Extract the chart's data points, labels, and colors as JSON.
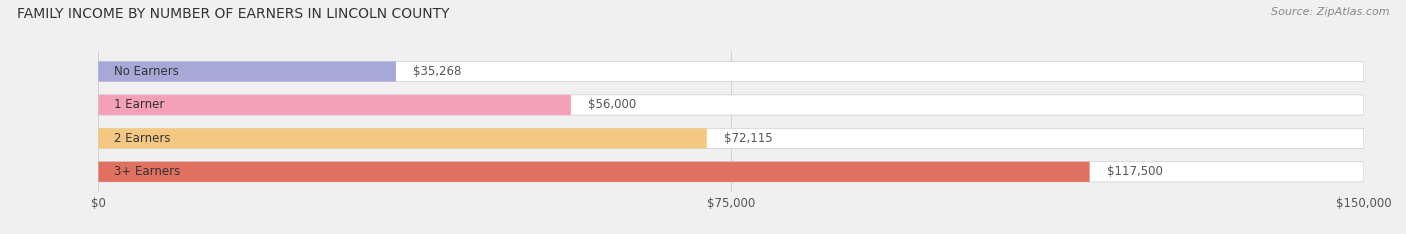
{
  "title": "FAMILY INCOME BY NUMBER OF EARNERS IN LINCOLN COUNTY",
  "source": "Source: ZipAtlas.com",
  "categories": [
    "No Earners",
    "1 Earner",
    "2 Earners",
    "3+ Earners"
  ],
  "values": [
    35268,
    56000,
    72115,
    117500
  ],
  "labels": [
    "$35,268",
    "$56,000",
    "$72,115",
    "$117,500"
  ],
  "bar_colors": [
    "#a8a8d8",
    "#f4a0b8",
    "#f5c882",
    "#e07060"
  ],
  "xlim": [
    0,
    150000
  ],
  "xticklabels": [
    "$0",
    "$75,000",
    "$150,000"
  ],
  "background_color": "#f0f0f0",
  "title_fontsize": 10,
  "source_fontsize": 8,
  "label_fontsize": 8.5,
  "tick_fontsize": 8.5,
  "cat_fontsize": 8.5
}
